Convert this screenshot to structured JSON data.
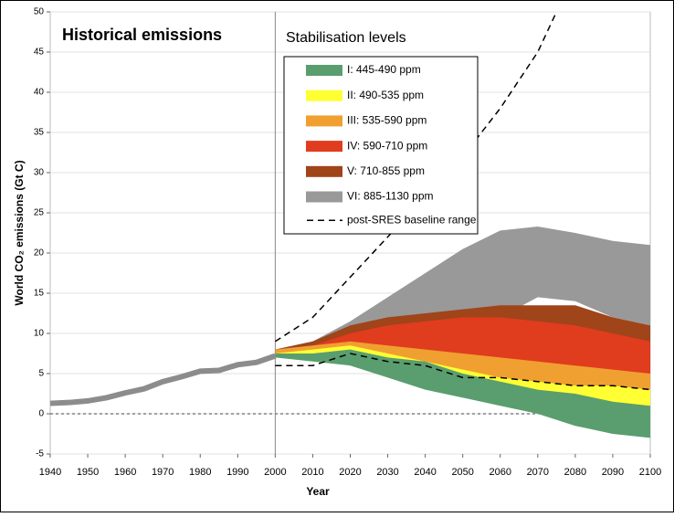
{
  "chart_data": {
    "type": "range_area",
    "annotations": [
      "Historical emissions",
      "Stabilisation levels"
    ],
    "x_label": "Year",
    "y_label": "World CO₂ emissions (Gt C)",
    "xlim": [
      1940,
      2100
    ],
    "xticks": [
      1940,
      1950,
      1960,
      1970,
      1980,
      1990,
      2000,
      2010,
      2020,
      2030,
      2040,
      2050,
      2060,
      2070,
      2080,
      2090,
      2100
    ],
    "ylim": [
      -5,
      50
    ],
    "yticks": [
      -5,
      0,
      5,
      10,
      15,
      20,
      25,
      30,
      35,
      40,
      45,
      50
    ],
    "grid": true,
    "historical": {
      "color": "#8c8c8c",
      "x": [
        1940,
        1945,
        1950,
        1955,
        1960,
        1965,
        1970,
        1975,
        1980,
        1985,
        1990,
        1995,
        2000
      ],
      "values": [
        1.3,
        1.4,
        1.6,
        2.0,
        2.6,
        3.1,
        4.0,
        4.6,
        5.3,
        5.4,
        6.1,
        6.4,
        7.2
      ]
    },
    "x": [
      2000,
      2010,
      2020,
      2030,
      2040,
      2050,
      2060,
      2070,
      2080,
      2090,
      2100
    ],
    "bands": [
      {
        "name": "VI: 885-1130 ppm",
        "color": "#999999",
        "high": [
          8,
          9,
          11.5,
          14.5,
          17.5,
          20.5,
          22.8,
          23.3,
          22.5,
          21.5,
          21
        ],
        "low": [
          8,
          8.5,
          9,
          9.5,
          10,
          11,
          12,
          14.5,
          14,
          12,
          11
        ]
      },
      {
        "name": "V: 710-855 ppm",
        "color": "#a0441a",
        "high": [
          8,
          9,
          11,
          12,
          12.5,
          13,
          13.5,
          13.5,
          13.5,
          12,
          11
        ],
        "low": [
          7.5,
          8,
          8.5,
          8.5,
          8.5,
          8.5,
          8.5,
          8,
          8,
          7.5,
          7
        ]
      },
      {
        "name": "IV: 590-710 ppm",
        "color": "#e03c1e",
        "high": [
          8,
          8.5,
          10,
          11,
          11.5,
          12,
          12,
          11.5,
          11,
          10,
          9
        ],
        "low": [
          7.5,
          7.5,
          7.5,
          7,
          6,
          5,
          4.5,
          4.5,
          4,
          4,
          4
        ]
      },
      {
        "name": "III: 535-590 ppm",
        "color": "#f0a030",
        "high": [
          8,
          8.5,
          9,
          8.5,
          8,
          7.5,
          7,
          6.5,
          6,
          5.5,
          5
        ],
        "low": [
          7.5,
          7,
          6.5,
          6,
          5,
          4.5,
          4,
          3.5,
          3.5,
          3,
          3
        ]
      },
      {
        "name": "II: 490-535 ppm",
        "color": "#ffff33",
        "high": [
          7.5,
          8,
          8.5,
          7.5,
          6.5,
          5.5,
          4.5,
          4,
          3.5,
          3.5,
          3
        ],
        "low": [
          7,
          7,
          6.5,
          5.5,
          4.5,
          3.5,
          2.5,
          2,
          1.5,
          1,
          0.5
        ]
      },
      {
        "name": "I: 445-490 ppm",
        "color": "#5a9e6f",
        "high": [
          7.5,
          7.5,
          8,
          7,
          6.5,
          5,
          4,
          3,
          2.5,
          1.5,
          1
        ],
        "low": [
          7,
          6.5,
          6,
          4.5,
          3,
          2,
          1,
          0,
          -1.5,
          -2.5,
          -3
        ]
      }
    ],
    "baseline": {
      "name": "post-SRES baseline range",
      "color": "#000000",
      "x_upper": [
        2000,
        2010,
        2020,
        2030,
        2040,
        2050,
        2060,
        2070,
        2075
      ],
      "upper": [
        9,
        12,
        17,
        22,
        27,
        32,
        38,
        45,
        50
      ],
      "x_lower": [
        2000,
        2010,
        2020,
        2030,
        2040,
        2050,
        2060,
        2070,
        2080,
        2090,
        2100
      ],
      "lower": [
        6,
        6,
        7.5,
        6.5,
        6,
        4.5,
        4.5,
        4,
        3.5,
        3.5,
        3
      ]
    }
  }
}
